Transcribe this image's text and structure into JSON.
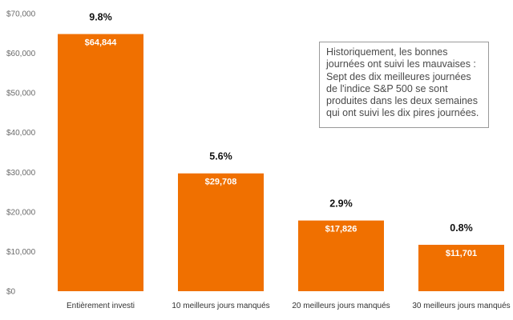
{
  "colors": {
    "bar": "#F07000",
    "axis_text": "#6B6B6B",
    "annotation_border": "#9A9A9A"
  },
  "chart_data": {
    "type": "bar",
    "title": "",
    "xlabel": "",
    "ylabel": "",
    "ylim": [
      0,
      70000
    ],
    "yticks": [
      0,
      10000,
      20000,
      30000,
      40000,
      50000,
      60000,
      70000
    ],
    "ytick_labels": [
      "$0",
      "$10,000",
      "$20,000",
      "$30,000",
      "$40,000",
      "$50,000",
      "$60,000",
      "$70,000"
    ],
    "categories": [
      "Entièrement investi",
      "10 meilleurs jours manqués",
      "20 meilleurs jours manqués",
      "30 meilleurs jours manqués"
    ],
    "values": [
      64844,
      29708,
      17826,
      11701
    ],
    "value_labels": [
      "$64,844",
      "$29,708",
      "$17,826",
      "$11,701"
    ],
    "percent_labels": [
      "9.8%",
      "5.6%",
      "2.9%",
      "0.8%"
    ],
    "grid": false,
    "legend": "none"
  },
  "annotation": {
    "text": "Historiquement, les bonnes\njournées ont suivi les mauvaises :\nSept des dix meilleures journées\nde l'indice S&P 500 se sont\nproduites dans les deux semaines\nqui ont suivi les dix pires journées."
  }
}
